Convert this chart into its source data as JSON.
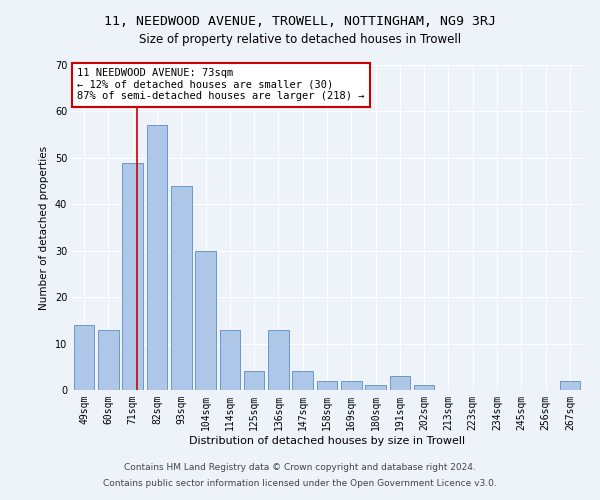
{
  "title": "11, NEEDWOOD AVENUE, TROWELL, NOTTINGHAM, NG9 3RJ",
  "subtitle": "Size of property relative to detached houses in Trowell",
  "xlabel": "Distribution of detached houses by size in Trowell",
  "ylabel": "Number of detached properties",
  "categories": [
    "49sqm",
    "60sqm",
    "71sqm",
    "82sqm",
    "93sqm",
    "104sqm",
    "114sqm",
    "125sqm",
    "136sqm",
    "147sqm",
    "158sqm",
    "169sqm",
    "180sqm",
    "191sqm",
    "202sqm",
    "213sqm",
    "223sqm",
    "234sqm",
    "245sqm",
    "256sqm",
    "267sqm"
  ],
  "values": [
    14,
    13,
    49,
    57,
    44,
    30,
    13,
    4,
    13,
    4,
    2,
    2,
    1,
    3,
    1,
    0,
    0,
    0,
    0,
    0,
    2
  ],
  "bar_color": "#aec6e8",
  "bar_edge_color": "#5a8fc2",
  "annotation_text": "11 NEEDWOOD AVENUE: 73sqm\n← 12% of detached houses are smaller (30)\n87% of semi-detached houses are larger (218) →",
  "annotation_box_color": "#ffffff",
  "annotation_box_edge_color": "#cc0000",
  "vline_color": "#cc0000",
  "vline_x": 2.18,
  "ylim": [
    0,
    70
  ],
  "yticks": [
    0,
    10,
    20,
    30,
    40,
    50,
    60,
    70
  ],
  "footer1": "Contains HM Land Registry data © Crown copyright and database right 2024.",
  "footer2": "Contains public sector information licensed under the Open Government Licence v3.0.",
  "bg_color": "#eef2f9",
  "plot_bg_color": "#eef2f9",
  "grid_color": "#ffffff",
  "title_fontsize": 9.5,
  "subtitle_fontsize": 8.5,
  "xlabel_fontsize": 8,
  "ylabel_fontsize": 7.5,
  "tick_fontsize": 7,
  "annotation_fontsize": 7.5,
  "footer_fontsize": 6.5
}
